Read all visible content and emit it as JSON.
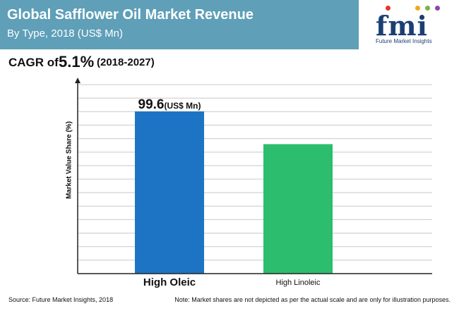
{
  "header": {
    "title": "Global Safflower Oil Market Revenue",
    "subtitle": "By Type, 2018 (US$ Mn)",
    "cagr_prefix": "CAGR of",
    "cagr_value": "5.1%",
    "cagr_period": "(2018-2027)"
  },
  "logo": {
    "letters": "fmi",
    "caption": "Future Market Insights"
  },
  "colors": {
    "header_band": "#5f9fb8",
    "bar_high_oleic": "#1e74c4",
    "bar_high_linoleic": "#2dbd6e",
    "logo_dots": [
      "#e4352c",
      "#f2a81d",
      "#7cb342",
      "#8e44ad"
    ]
  },
  "chart_data": {
    "type": "bar",
    "categories": [
      "High Oleic",
      "High Linoleic"
    ],
    "values": [
      99.6,
      79.5
    ],
    "ylabel": "Market Value Share (%)",
    "ylim": [
      0,
      120
    ],
    "grid": true,
    "data_labels": [
      {
        "value": "99.6",
        "unit": "(US$ Mn)"
      }
    ]
  },
  "footer": {
    "source": "Source: Future Market Insights, 2018",
    "note": "Note: Market shares are not depicted as per the actual scale and are only for illustration purposes."
  }
}
